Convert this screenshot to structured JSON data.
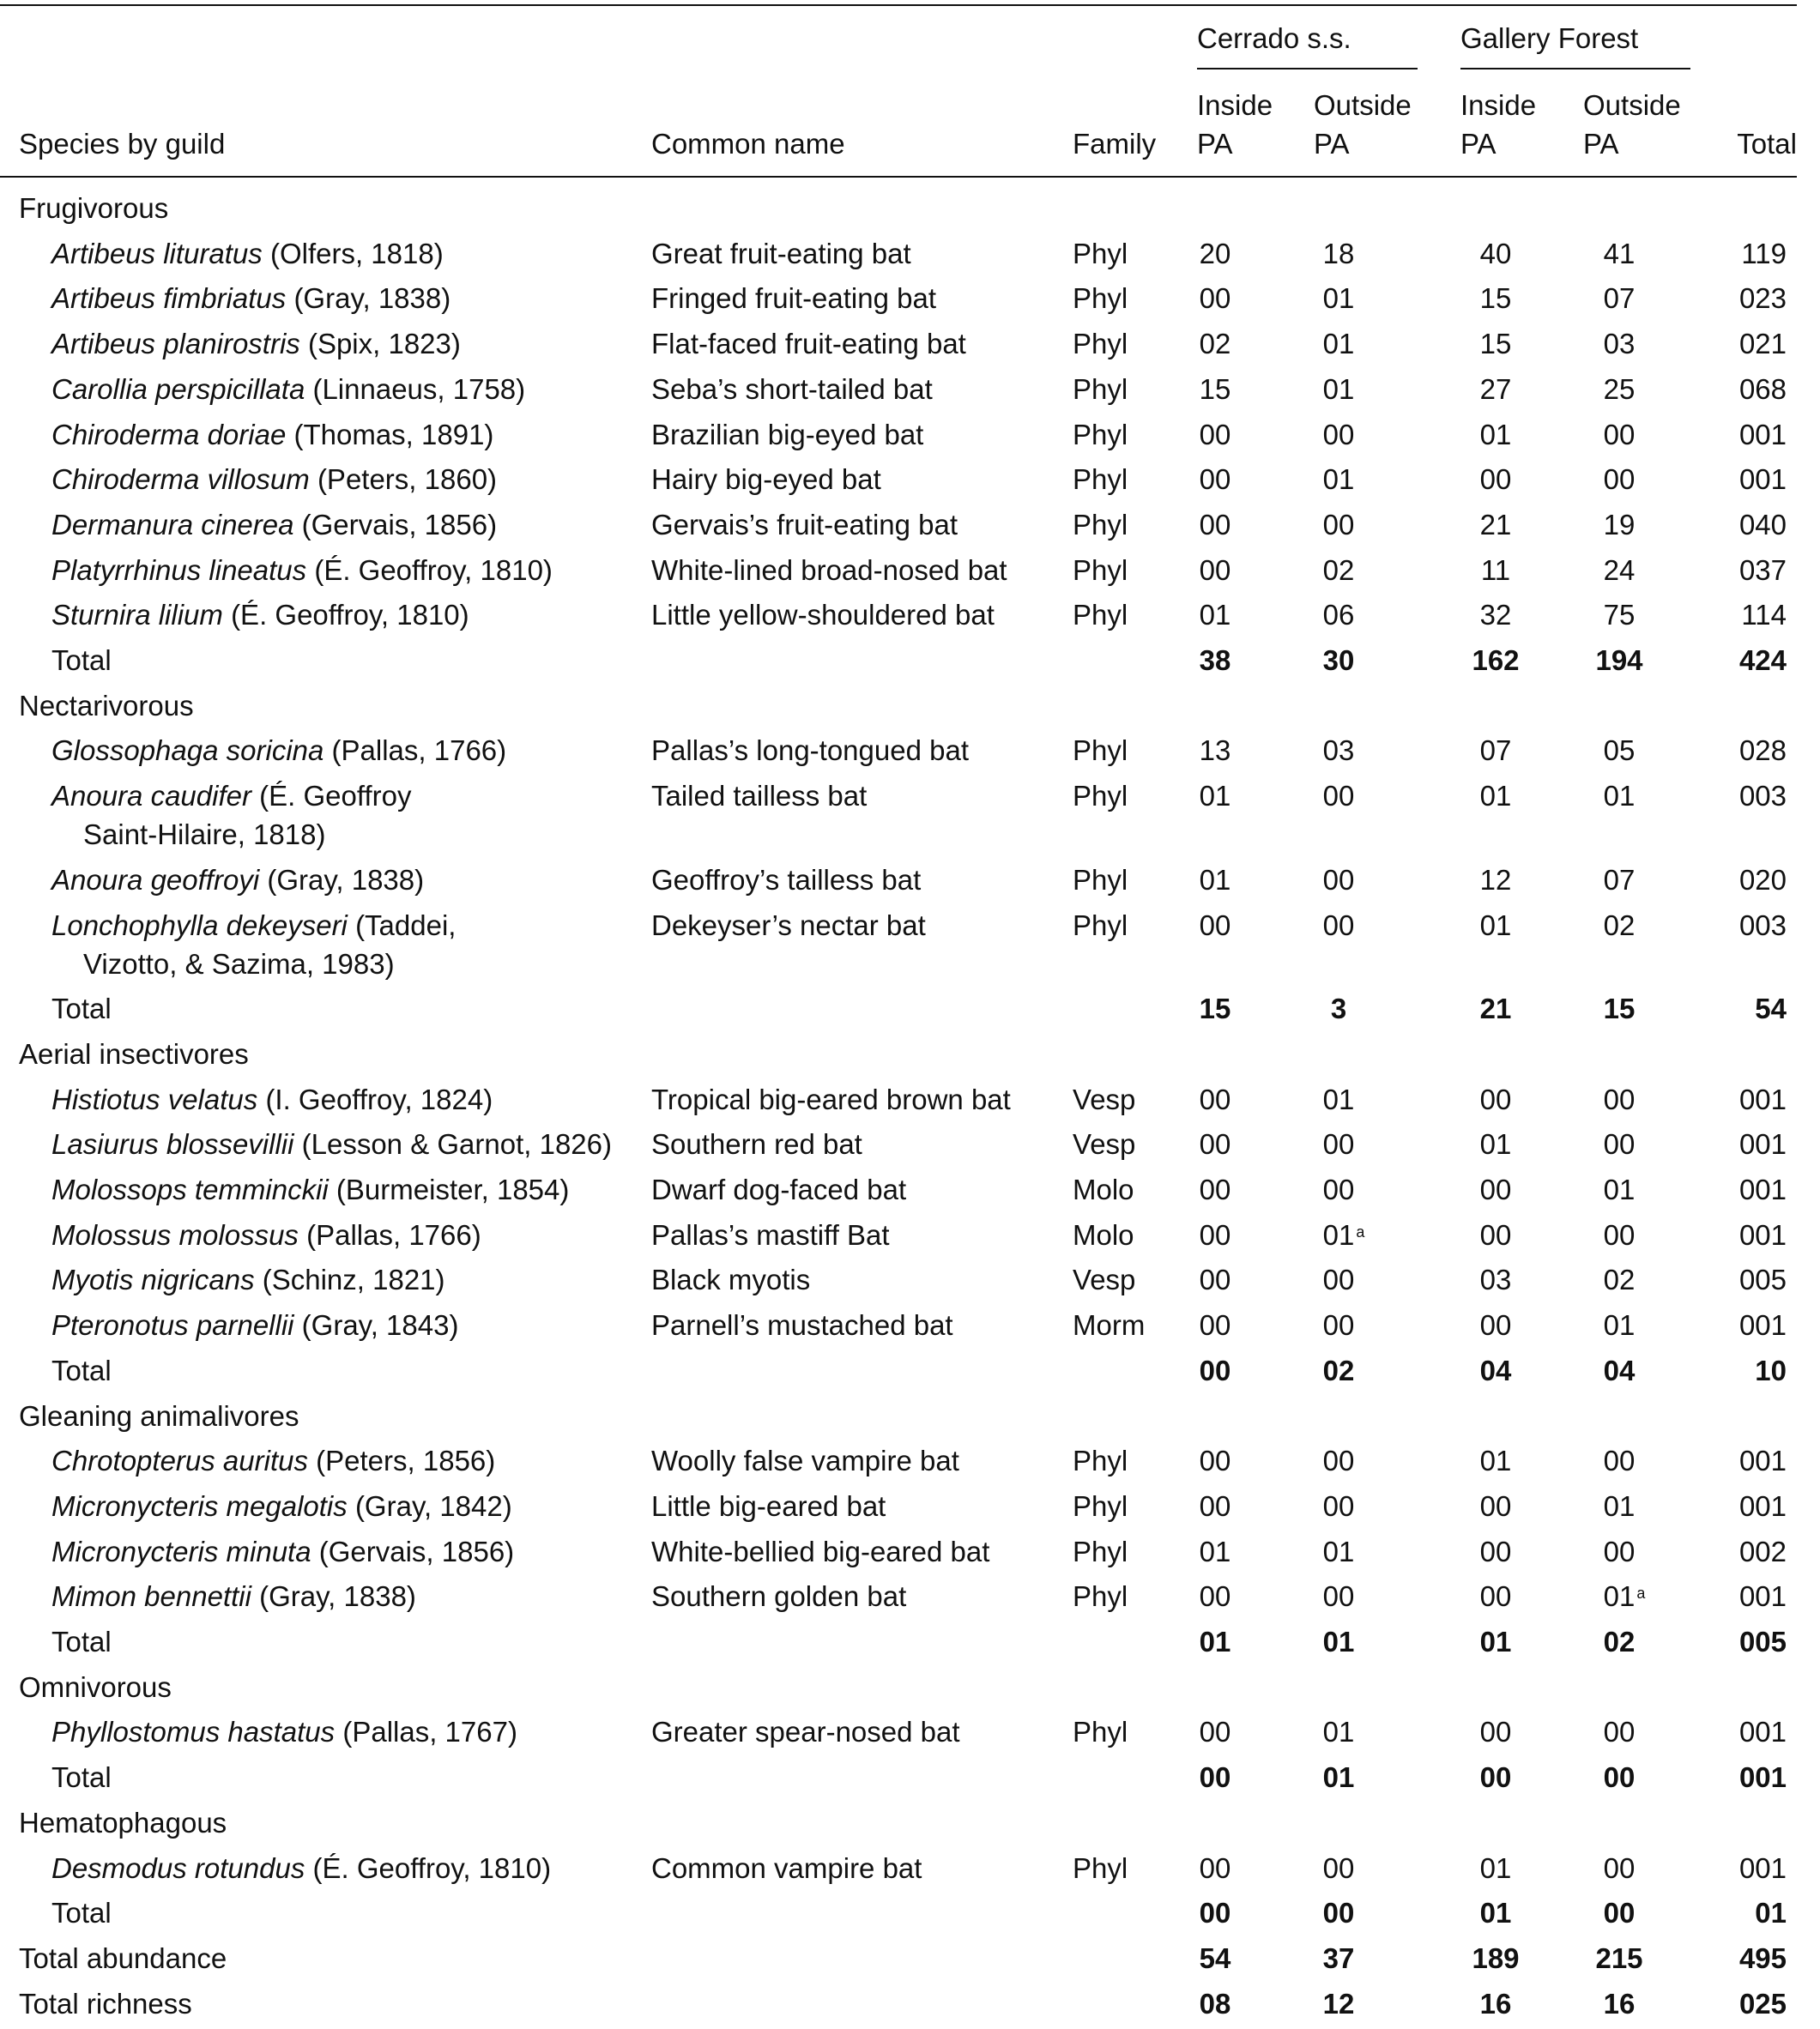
{
  "header": {
    "col_species": "Species by guild",
    "col_common": "Common name",
    "col_family": "Family",
    "groups": [
      {
        "label": "Cerrado s.s.",
        "cols": [
          [
            "Inside",
            "PA"
          ],
          [
            "Outside",
            "PA"
          ]
        ]
      },
      {
        "label": "Gallery Forest",
        "cols": [
          [
            "Inside",
            "PA"
          ],
          [
            "Outside",
            "PA"
          ]
        ]
      }
    ],
    "col_total": "Total"
  },
  "guilds": [
    {
      "name": "Frugivorous",
      "species": [
        {
          "genus_species": "Artibeus lituratus",
          "authority": "(Olfers, 1818)",
          "common": "Great fruit-eating bat",
          "family": "Phyl",
          "counts": [
            "20",
            "18",
            "40",
            "41"
          ],
          "total": "119"
        },
        {
          "genus_species": "Artibeus fimbriatus",
          "authority": "(Gray, 1838)",
          "common": "Fringed fruit-eating bat",
          "family": "Phyl",
          "counts": [
            "00",
            "01",
            "15",
            "07"
          ],
          "total": "023"
        },
        {
          "genus_species": "Artibeus planirostris",
          "authority": "(Spix, 1823)",
          "common": "Flat-faced fruit-eating bat",
          "family": "Phyl",
          "counts": [
            "02",
            "01",
            "15",
            "03"
          ],
          "total": "021"
        },
        {
          "genus_species": "Carollia perspicillata",
          "authority": "(Linnaeus, 1758)",
          "common": "Seba’s short-tailed bat",
          "family": "Phyl",
          "counts": [
            "15",
            "01",
            "27",
            "25"
          ],
          "total": "068"
        },
        {
          "genus_species": "Chiroderma doriae",
          "authority": "(Thomas, 1891)",
          "common": "Brazilian big-eyed bat",
          "family": "Phyl",
          "counts": [
            "00",
            "00",
            "01",
            "00"
          ],
          "total": "001"
        },
        {
          "genus_species": "Chiroderma villosum",
          "authority": "(Peters, 1860)",
          "common": "Hairy big-eyed bat",
          "family": "Phyl",
          "counts": [
            "00",
            "01",
            "00",
            "00"
          ],
          "total": "001"
        },
        {
          "genus_species": "Dermanura cinerea",
          "authority": "(Gervais, 1856)",
          "common": "Gervais’s fruit-eating bat",
          "family": "Phyl",
          "counts": [
            "00",
            "00",
            "21",
            "19"
          ],
          "total": "040"
        },
        {
          "genus_species": "Platyrrhinus lineatus",
          "authority": "(É. Geoffroy, 1810)",
          "common": "White-lined broad-nosed bat",
          "family": "Phyl",
          "counts": [
            "00",
            "02",
            "11",
            "24"
          ],
          "total": "037"
        },
        {
          "genus_species": "Sturnira lilium",
          "authority": "(É. Geoffroy, 1810)",
          "common": "Little yellow-shouldered bat",
          "family": "Phyl",
          "counts": [
            "01",
            "06",
            "32",
            "75"
          ],
          "total": "114"
        }
      ],
      "total": {
        "label": "Total",
        "counts": [
          "38",
          "30",
          "162",
          "194"
        ],
        "total": "424"
      }
    },
    {
      "name": "Nectarivorous",
      "species": [
        {
          "genus_species": "Glossophaga soricina",
          "authority": "(Pallas, 1766)",
          "common": "Pallas’s long-tongued bat",
          "family": "Phyl",
          "counts": [
            "13",
            "03",
            "07",
            "05"
          ],
          "total": "028"
        },
        {
          "genus_species": "Anoura caudifer",
          "authority": "(É. Geoffroy",
          "authority_cont": "Saint-Hilaire, 1818)",
          "common": "Tailed tailless bat",
          "family": "Phyl",
          "counts": [
            "01",
            "00",
            "01",
            "01"
          ],
          "total": "003"
        },
        {
          "genus_species": "Anoura geoffroyi",
          "authority": "(Gray, 1838)",
          "common": "Geoffroy’s tailless bat",
          "family": "Phyl",
          "counts": [
            "01",
            "00",
            "12",
            "07"
          ],
          "total": "020"
        },
        {
          "genus_species": "Lonchophylla dekeyseri",
          "authority": "(Taddei,",
          "authority_cont": "Vizotto, & Sazima, 1983)",
          "common": "Dekeyser’s nectar bat",
          "family": "Phyl",
          "counts": [
            "00",
            "00",
            "01",
            "02"
          ],
          "total": "003"
        }
      ],
      "total": {
        "label": "Total",
        "counts": [
          "15",
          "3",
          "21",
          "15"
        ],
        "total": "54"
      }
    },
    {
      "name": "Aerial insectivores",
      "species": [
        {
          "genus_species": "Histiotus velatus",
          "authority": "(I. Geoffroy, 1824)",
          "common": "Tropical big-eared brown bat",
          "family": "Vesp",
          "counts": [
            "00",
            "01",
            "00",
            "00"
          ],
          "total": "001"
        },
        {
          "genus_species": "Lasiurus blossevillii",
          "authority": "(Lesson & Garnot, 1826)",
          "common": "Southern red bat",
          "family": "Vesp",
          "counts": [
            "00",
            "00",
            "01",
            "00"
          ],
          "total": "001"
        },
        {
          "genus_species": "Molossops temminckii",
          "authority": "(Burmeister, 1854)",
          "common": "Dwarf dog-faced bat",
          "family": "Molo",
          "counts": [
            "00",
            "00",
            "00",
            "01"
          ],
          "total": "001"
        },
        {
          "genus_species": "Molossus molossus",
          "authority": "(Pallas, 1766)",
          "common": "Pallas’s mastiff Bat",
          "family": "Molo",
          "counts": [
            "00",
            "01",
            "00",
            "00"
          ],
          "count_notes": {
            "1": "a"
          },
          "total": "001"
        },
        {
          "genus_species": "Myotis nigricans",
          "authority": "(Schinz, 1821)",
          "common": "Black myotis",
          "family": "Vesp",
          "counts": [
            "00",
            "00",
            "03",
            "02"
          ],
          "total": "005"
        },
        {
          "genus_species": "Pteronotus parnellii",
          "authority": "(Gray, 1843)",
          "common": "Parnell’s mustached bat",
          "family": "Morm",
          "counts": [
            "00",
            "00",
            "00",
            "01"
          ],
          "total": "001"
        }
      ],
      "total": {
        "label": "Total",
        "counts": [
          "00",
          "02",
          "04",
          "04"
        ],
        "total": "10"
      }
    },
    {
      "name": "Gleaning animalivores",
      "species": [
        {
          "genus_species": "Chrotopterus auritus",
          "authority": "(Peters, 1856)",
          "common": "Woolly false vampire bat",
          "family": "Phyl",
          "counts": [
            "00",
            "00",
            "01",
            "00"
          ],
          "total": "001"
        },
        {
          "genus_species": "Micronycteris megalotis",
          "authority": "(Gray, 1842)",
          "common": "Little big-eared bat",
          "family": "Phyl",
          "counts": [
            "00",
            "00",
            "00",
            "01"
          ],
          "total": "001"
        },
        {
          "genus_species": "Micronycteris minuta",
          "authority": "(Gervais, 1856)",
          "common": "White-bellied big-eared bat",
          "family": "Phyl",
          "counts": [
            "01",
            "01",
            "00",
            "00"
          ],
          "total": "002"
        },
        {
          "genus_species": "Mimon bennettii",
          "authority": "(Gray, 1838)",
          "common": "Southern golden bat",
          "family": "Phyl",
          "counts": [
            "00",
            "00",
            "00",
            "01"
          ],
          "count_notes": {
            "3": "a"
          },
          "total": "001"
        }
      ],
      "total": {
        "label": "Total",
        "counts": [
          "01",
          "01",
          "01",
          "02"
        ],
        "total": "005"
      }
    },
    {
      "name": "Omnivorous",
      "species": [
        {
          "genus_species": "Phyllostomus hastatus",
          "authority": "(Pallas, 1767)",
          "common": "Greater spear-nosed bat",
          "family": "Phyl",
          "counts": [
            "00",
            "01",
            "00",
            "00"
          ],
          "total": "001"
        }
      ],
      "total": {
        "label": "Total",
        "counts": [
          "00",
          "01",
          "00",
          "00"
        ],
        "total": "001"
      }
    },
    {
      "name": "Hematophagous",
      "species": [
        {
          "genus_species": "Desmodus rotundus",
          "authority": "(É. Geoffroy, 1810)",
          "common": "Common vampire bat",
          "family": "Phyl",
          "counts": [
            "00",
            "00",
            "01",
            "00"
          ],
          "total": "001"
        }
      ],
      "total": {
        "label": "Total",
        "counts": [
          "00",
          "00",
          "01",
          "00"
        ],
        "total": "01"
      }
    }
  ],
  "summary": [
    {
      "label": "Total abundance",
      "counts": [
        "54",
        "37",
        "189",
        "215"
      ],
      "total": "495"
    },
    {
      "label": "Total richness",
      "counts": [
        "08",
        "12",
        "16",
        "16"
      ],
      "total": "025"
    }
  ]
}
